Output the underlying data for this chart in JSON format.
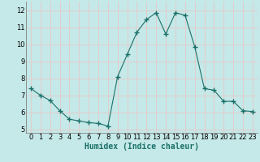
{
  "x": [
    0,
    1,
    2,
    3,
    4,
    5,
    6,
    7,
    8,
    9,
    10,
    11,
    12,
    13,
    14,
    15,
    16,
    17,
    18,
    19,
    20,
    21,
    22,
    23
  ],
  "y": [
    7.4,
    7.0,
    6.7,
    6.1,
    5.6,
    5.5,
    5.4,
    5.35,
    5.2,
    8.1,
    9.4,
    10.7,
    11.45,
    11.85,
    10.6,
    11.85,
    11.7,
    9.85,
    7.4,
    7.3,
    6.65,
    6.65,
    6.1,
    6.05
  ],
  "line_color": "#1a7068",
  "marker": "+",
  "marker_size": 4,
  "bg_color": "#c5e8e8",
  "grid_color": "#e8c8c8",
  "xlabel": "Humidex (Indice chaleur)",
  "xlabel_fontsize": 7,
  "xlim": [
    -0.5,
    23.5
  ],
  "ylim": [
    4.8,
    12.5
  ],
  "yticks": [
    5,
    6,
    7,
    8,
    9,
    10,
    11,
    12
  ],
  "xticks": [
    0,
    1,
    2,
    3,
    4,
    5,
    6,
    7,
    8,
    9,
    10,
    11,
    12,
    13,
    14,
    15,
    16,
    17,
    18,
    19,
    20,
    21,
    22,
    23
  ],
  "tick_fontsize": 6
}
